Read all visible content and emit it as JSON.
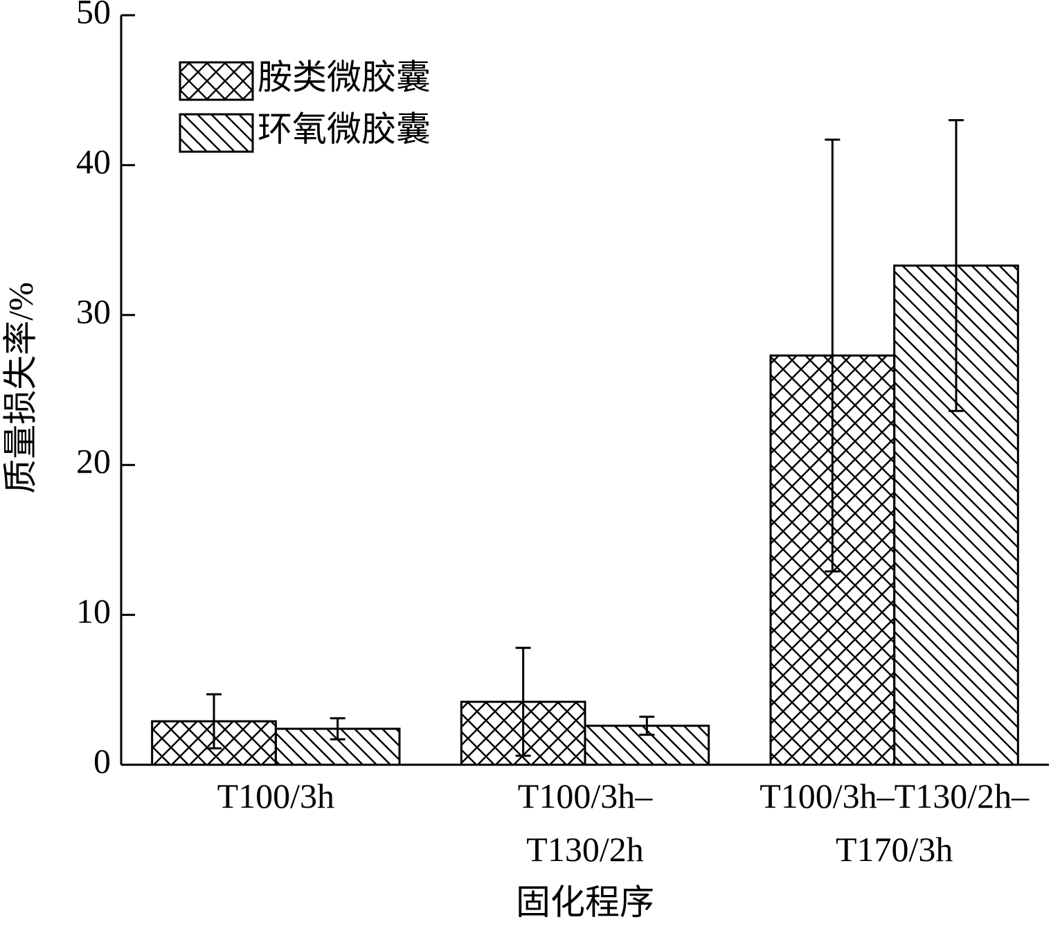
{
  "chart_data": {
    "type": "bar",
    "x_label": "固化程序",
    "y_label": "质量损失率/%",
    "categories": [
      "T100/3h",
      "T100/3h–\nT130/2h",
      "T100/3h–T130/2h–\nT170/3h"
    ],
    "series": [
      {
        "name": "胺类微胶囊",
        "color": "#000000",
        "hatch": "crosshatch",
        "values": [
          2.9,
          4.2,
          27.3
        ],
        "errors": [
          1.8,
          3.6,
          14.4
        ]
      },
      {
        "name": "环氧微胶囊",
        "color": "#000000",
        "hatch": "backslash",
        "values": [
          2.4,
          2.6,
          33.3
        ],
        "errors": [
          0.7,
          0.6,
          9.7
        ]
      }
    ],
    "ylim": [
      0,
      50
    ],
    "yticks": [
      0,
      10,
      20,
      30,
      40,
      50
    ],
    "grid": false,
    "legend": "upper left"
  }
}
